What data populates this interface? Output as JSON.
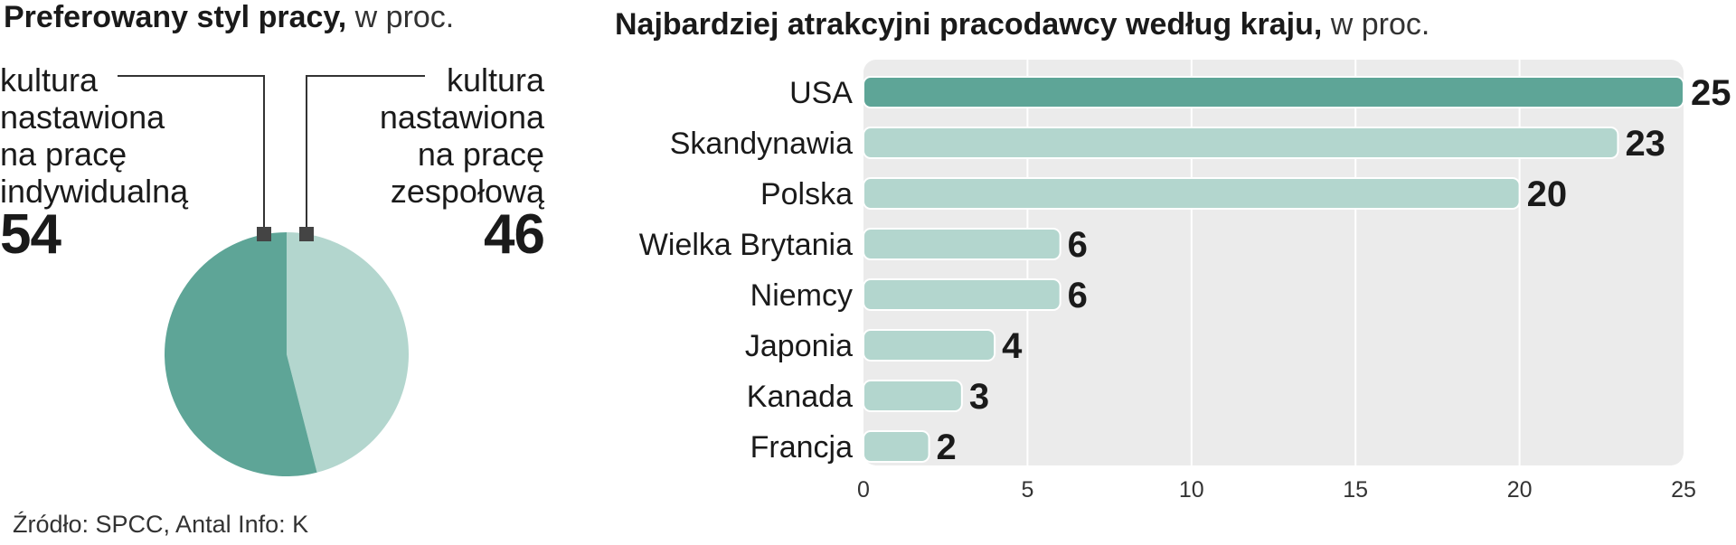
{
  "pie": {
    "title_bold": "Preferowany styl pracy,",
    "title_unit": " w proc.",
    "colors": {
      "individual": "#5ea597",
      "team": "#b3d6ce"
    }
  },
  "bar": {
    "title_bold": "Najbardziej atrakcyjni pracodawcy według kraju,",
    "title_unit": " w proc.",
    "colors": {
      "highlight": "#5ea597",
      "normal": "#b3d6ce",
      "background": "#ebebeb"
    }
  },
  "source": "Źródło: SPCC, Antal  Info: K",
  "chart_data": [
    {
      "type": "pie",
      "title": "Preferowany styl pracy, w proc.",
      "slices": [
        {
          "label_lines": [
            "kultura",
            "nastawiona",
            "na pracę",
            "indywidualną"
          ],
          "value": 54
        },
        {
          "label_lines": [
            "kultura",
            "nastawiona",
            "na pracę",
            "zespołową"
          ],
          "value": 46
        }
      ]
    },
    {
      "type": "bar",
      "orientation": "horizontal",
      "title": "Najbardziej atrakcyjni pracodawcy według kraju, w proc.",
      "categories": [
        "USA",
        "Skandynawia",
        "Polska",
        "Wielka Brytania",
        "Niemcy",
        "Japonia",
        "Kanada",
        "Francja"
      ],
      "values": [
        25,
        23,
        20,
        6,
        6,
        4,
        3,
        2
      ],
      "xlim": [
        0,
        25
      ],
      "xticks": [
        0,
        5,
        10,
        15,
        20,
        25
      ],
      "grid": true
    }
  ]
}
